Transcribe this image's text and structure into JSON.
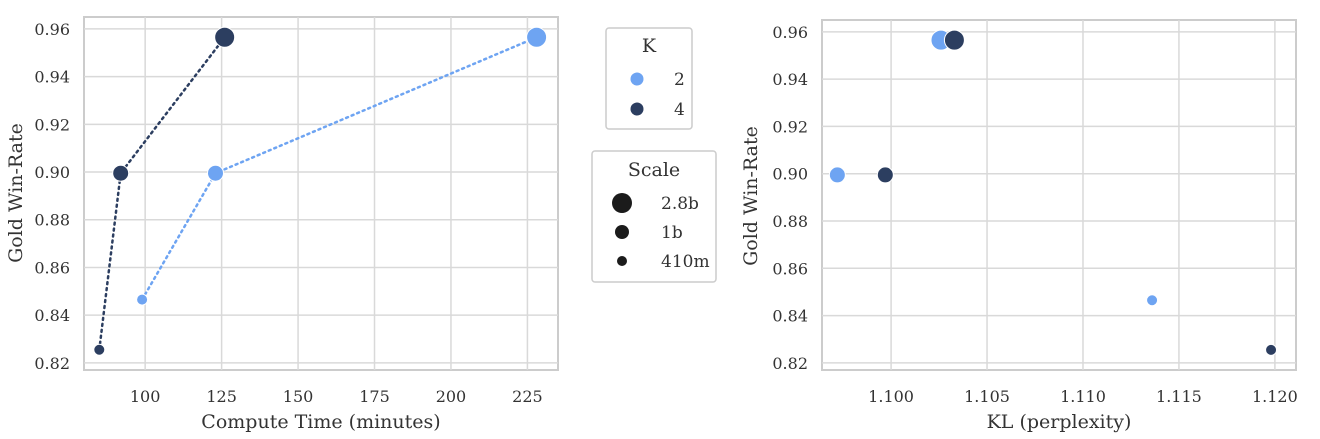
{
  "chart_data": [
    {
      "type": "line",
      "xlabel": "Compute Time (minutes)",
      "ylabel": "Gold Win-Rate",
      "xlim": [
        80,
        235
      ],
      "ylim": [
        0.817,
        0.965
      ],
      "xticks": [
        100,
        125,
        150,
        175,
        200,
        225
      ],
      "yticks": [
        0.82,
        0.84,
        0.86,
        0.88,
        0.9,
        0.92,
        0.94,
        0.96
      ],
      "grid": true,
      "series": [
        {
          "name": "2",
          "color": "#6ea4f2",
          "line_style": "dotted",
          "points": [
            {
              "x": 99,
              "y": 0.8465,
              "scale": "410m"
            },
            {
              "x": 123,
              "y": 0.8995,
              "scale": "1b"
            },
            {
              "x": 228,
              "y": 0.9565,
              "scale": "2.8b"
            }
          ]
        },
        {
          "name": "4",
          "color": "#2c3e60",
          "line_style": "dotted",
          "points": [
            {
              "x": 85,
              "y": 0.8255,
              "scale": "410m"
            },
            {
              "x": 92,
              "y": 0.8995,
              "scale": "1b"
            },
            {
              "x": 126,
              "y": 0.9565,
              "scale": "2.8b"
            }
          ]
        }
      ]
    },
    {
      "type": "scatter",
      "xlabel": "KL (perplexity)",
      "ylabel": "Gold Win-Rate",
      "xlim": [
        1.0964,
        1.1211
      ],
      "ylim": [
        0.817,
        0.965
      ],
      "xticks": [
        "1.100",
        "1.105",
        "1.110",
        "1.115",
        "1.120"
      ],
      "yticks": [
        0.82,
        0.84,
        0.86,
        0.88,
        0.9,
        0.92,
        0.94,
        0.96
      ],
      "grid": true,
      "series": [
        {
          "name": "2",
          "color": "#6ea4f2",
          "points": [
            {
              "x": 1.0972,
              "y": 0.8995,
              "scale": "1b"
            },
            {
              "x": 1.1026,
              "y": 0.9565,
              "scale": "2.8b"
            },
            {
              "x": 1.1136,
              "y": 0.8465,
              "scale": "410m"
            }
          ]
        },
        {
          "name": "4",
          "color": "#2c3e60",
          "points": [
            {
              "x": 1.0997,
              "y": 0.8995,
              "scale": "1b"
            },
            {
              "x": 1.1033,
              "y": 0.9565,
              "scale": "2.8b"
            },
            {
              "x": 1.1198,
              "y": 0.8255,
              "scale": "410m"
            }
          ]
        }
      ]
    }
  ],
  "legend_k": {
    "title": "K",
    "items": [
      {
        "label": "2",
        "color": "#6ea4f2"
      },
      {
        "label": "4",
        "color": "#2c3e60"
      }
    ]
  },
  "legend_scale": {
    "title": "Scale",
    "items": [
      {
        "label": "2.8b",
        "size": 10
      },
      {
        "label": "1b",
        "size": 7
      },
      {
        "label": "410m",
        "size": 5
      }
    ]
  },
  "marker_sizes": {
    "2.8b": 10,
    "1b": 8,
    "410m": 5.5
  }
}
